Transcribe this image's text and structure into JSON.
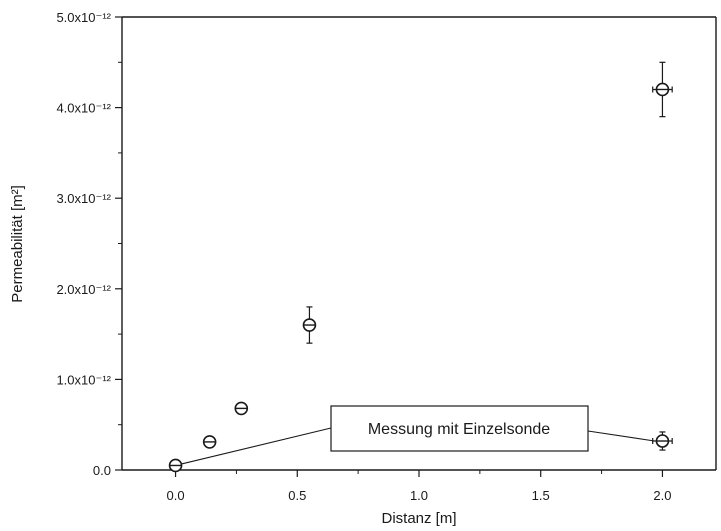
{
  "chart_data": {
    "type": "scatter",
    "xlabel": "Distanz [m]",
    "ylabel": "Permeabilität [m²]",
    "xlim": [
      -0.22,
      2.22
    ],
    "ylim": [
      0,
      5e-12
    ],
    "x_ticks": [
      {
        "value": 0.0,
        "label": "0.0"
      },
      {
        "value": 0.5,
        "label": "0.5"
      },
      {
        "value": 1.0,
        "label": "1.0"
      },
      {
        "value": 1.5,
        "label": "1.5"
      },
      {
        "value": 2.0,
        "label": "2.0"
      }
    ],
    "y_ticks": [
      {
        "value": 0.0,
        "label": "0.0"
      },
      {
        "value": 1e-12,
        "label": "1.0x10⁻¹²"
      },
      {
        "value": 2e-12,
        "label": "2.0x10⁻¹²"
      },
      {
        "value": 3e-12,
        "label": "3.0x10⁻¹²"
      },
      {
        "value": 4e-12,
        "label": "4.0x10⁻¹²"
      },
      {
        "value": 5e-12,
        "label": "5.0x10⁻¹²"
      }
    ],
    "grid": false,
    "marker": "open circle with crosshair and error bars",
    "points": [
      {
        "x": 0.0,
        "y": 5e-14,
        "yerr": 2e-14,
        "xerr": 0.0
      },
      {
        "x": 0.14,
        "y": 3.1e-13,
        "yerr": 2e-14,
        "xerr": 0.0
      },
      {
        "x": 0.27,
        "y": 6.8e-13,
        "yerr": 2e-14,
        "xerr": 0.0
      },
      {
        "x": 0.55,
        "y": 1.6e-12,
        "yerr": 2e-13,
        "xerr": 0.0
      },
      {
        "x": 2.0,
        "y": 3.2e-13,
        "yerr": 1e-13,
        "xerr": 0.04
      },
      {
        "x": 2.0,
        "y": 4.2e-12,
        "yerr": 3e-13,
        "xerr": 0.04
      }
    ],
    "annotation": {
      "text": "Messung mit Einzelsonde",
      "points_to": [
        {
          "x": 0.0,
          "y": 5e-14
        },
        {
          "x": 2.0,
          "y": 3.2e-13
        }
      ]
    }
  }
}
